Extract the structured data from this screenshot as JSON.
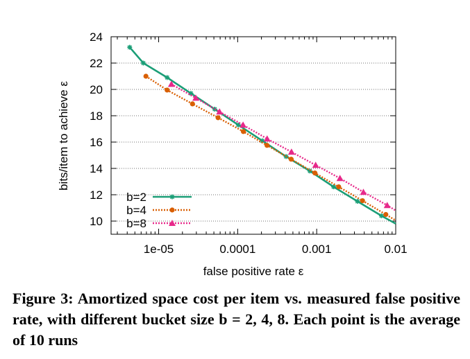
{
  "chart_data": {
    "type": "line",
    "xlabel": "false positive rate ε",
    "ylabel": "bits/item to achieve ε",
    "xscale": "log",
    "xlim": [
      2.5e-06,
      0.01
    ],
    "ylim": [
      9,
      24
    ],
    "xticks": [
      {
        "value": 1e-05,
        "label": "1e-05"
      },
      {
        "value": 0.0001,
        "label": "0.0001"
      },
      {
        "value": 0.001,
        "label": "0.001"
      },
      {
        "value": 0.01,
        "label": "0.01"
      }
    ],
    "yticks": [
      10,
      12,
      14,
      16,
      18,
      20,
      22,
      24
    ],
    "grid": "horizontal dotted",
    "legend_position": "bottom-left",
    "series": [
      {
        "name": "b=2",
        "color": "#1b9e77",
        "marker": "star",
        "dash": "solid",
        "points": [
          {
            "x": 4.3e-06,
            "y": 23.2
          },
          {
            "x": 6.4e-06,
            "y": 22.0
          },
          {
            "x": 1.28e-05,
            "y": 20.9
          },
          {
            "x": 2.56e-05,
            "y": 19.7
          },
          {
            "x": 5.12e-05,
            "y": 18.5
          },
          {
            "x": 0.000102,
            "y": 17.3
          },
          {
            "x": 0.000205,
            "y": 16.1
          },
          {
            "x": 0.00041,
            "y": 14.9
          },
          {
            "x": 0.00082,
            "y": 13.8
          },
          {
            "x": 0.00164,
            "y": 12.6
          },
          {
            "x": 0.00328,
            "y": 11.5
          },
          {
            "x": 0.0066,
            "y": 10.4
          },
          {
            "x": 0.01,
            "y": 9.8
          }
        ]
      },
      {
        "name": "b=4",
        "color": "#d95f02",
        "marker": "circle",
        "dash": "dotted",
        "points": [
          {
            "x": 6.9e-06,
            "y": 21.0
          },
          {
            "x": 1.28e-05,
            "y": 19.95
          },
          {
            "x": 2.68e-05,
            "y": 18.9
          },
          {
            "x": 5.65e-05,
            "y": 17.85
          },
          {
            "x": 0.000118,
            "y": 16.8
          },
          {
            "x": 0.000235,
            "y": 15.75
          },
          {
            "x": 0.000475,
            "y": 14.7
          },
          {
            "x": 0.00095,
            "y": 13.65
          },
          {
            "x": 0.0019,
            "y": 12.6
          },
          {
            "x": 0.0038,
            "y": 11.55
          },
          {
            "x": 0.0075,
            "y": 10.5
          },
          {
            "x": 0.01,
            "y": 10.05
          }
        ]
      },
      {
        "name": "b=8",
        "color": "#e7298a",
        "marker": "triangle",
        "dash": "dotted",
        "points": [
          {
            "x": 1.45e-05,
            "y": 20.4
          },
          {
            "x": 2.95e-05,
            "y": 19.35
          },
          {
            "x": 5.9e-05,
            "y": 18.3
          },
          {
            "x": 0.000117,
            "y": 17.3
          },
          {
            "x": 0.000236,
            "y": 16.25
          },
          {
            "x": 0.00048,
            "y": 15.25
          },
          {
            "x": 0.00097,
            "y": 14.25
          },
          {
            "x": 0.00197,
            "y": 13.25
          },
          {
            "x": 0.0039,
            "y": 12.2
          },
          {
            "x": 0.0078,
            "y": 11.2
          },
          {
            "x": 0.01,
            "y": 10.8
          }
        ]
      }
    ]
  },
  "caption": {
    "figure_label": "Figure 3:",
    "text": "Amortized space cost per item vs. measured false positive rate, with different bucket size b = 2, 4, 8. Each point is the average of 10 runs"
  }
}
